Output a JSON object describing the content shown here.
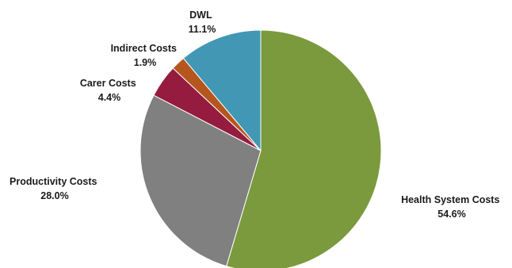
{
  "chart_data": {
    "type": "pie",
    "title": "",
    "start_angle_deg": 0,
    "direction": "clockwise",
    "slices": [
      {
        "label": "Health System Costs",
        "value": 54.6,
        "display": "54.6%",
        "color": "#7a9a3d"
      },
      {
        "label": "Productivity Costs",
        "value": 28.0,
        "display": "28.0%",
        "color": "#808080"
      },
      {
        "label": "Carer Costs",
        "value": 4.4,
        "display": "4.4%",
        "color": "#951c3e"
      },
      {
        "label": "Indirect Costs",
        "value": 1.9,
        "display": "1.9%",
        "color": "#b5561f"
      },
      {
        "label": "DWL",
        "value": 11.1,
        "display": "11.1%",
        "color": "#4197b4"
      }
    ]
  }
}
